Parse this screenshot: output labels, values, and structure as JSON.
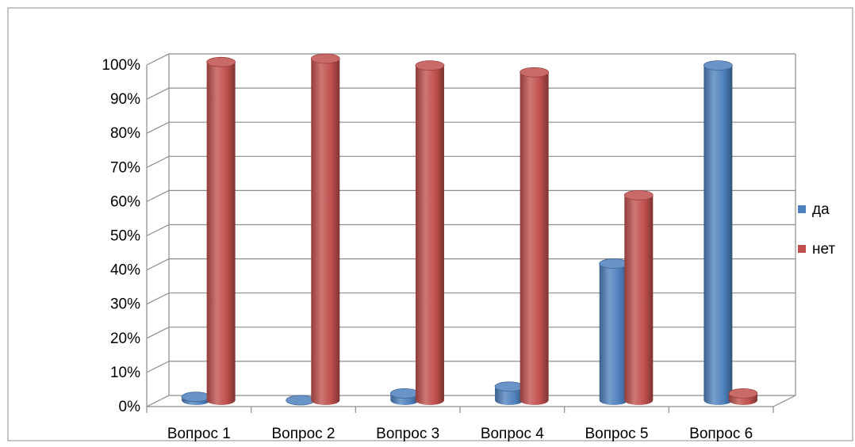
{
  "chart_data": {
    "type": "bar",
    "title": "",
    "xlabel": "",
    "ylabel": "",
    "categories": [
      "Вопрос 1",
      "Вопрос 2",
      "Вопрос 3",
      "Вопрос 4",
      "Вопрос 5",
      "Вопрос 6"
    ],
    "series": [
      {
        "name": "да",
        "values": [
          1,
          0,
          2,
          4,
          40,
          98
        ],
        "color": "#4F81BD"
      },
      {
        "name": "нет",
        "values": [
          99,
          100,
          98,
          96,
          60,
          2
        ],
        "color": "#C0504D"
      }
    ],
    "ylim": [
      0,
      100
    ],
    "yticks": [
      "0%",
      "10%",
      "20%",
      "30%",
      "40%",
      "50%",
      "60%",
      "70%",
      "80%",
      "90%",
      "100%"
    ],
    "grid": true,
    "legend_position": "right",
    "style": "3d-cylinder"
  }
}
